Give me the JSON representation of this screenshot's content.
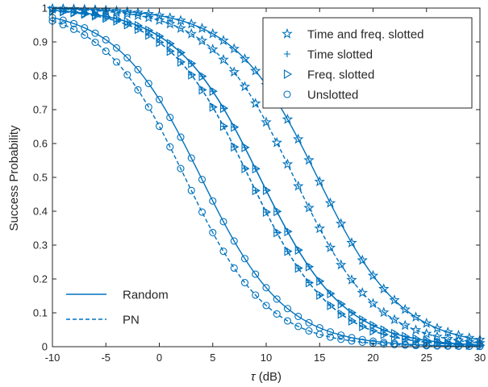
{
  "chart_data": {
    "type": "line",
    "xlabel_symbol": "τ",
    "xlabel_unit": " (dB)",
    "ylabel": "Success Probability",
    "xlim": [
      -10,
      30
    ],
    "ylim": [
      0,
      1
    ],
    "xticks": [
      -10,
      -5,
      0,
      5,
      10,
      15,
      20,
      25,
      30
    ],
    "yticks": [
      0,
      0.1,
      0.2,
      0.3,
      0.4,
      0.5,
      0.6,
      0.7,
      0.8,
      0.9,
      1
    ],
    "grid": false,
    "color": "#0072BD",
    "marker_legend": {
      "placement": "top-right",
      "entries": [
        {
          "label": "Time and freq. slotted",
          "marker": "star"
        },
        {
          "label": "Time slotted",
          "marker": "plus"
        },
        {
          "label": "Freq. slotted",
          "marker": "triangle-right"
        },
        {
          "label": "Unslotted",
          "marker": "circle"
        }
      ]
    },
    "line_legend": {
      "placement": "bottom-left",
      "entries": [
        {
          "label": "Random",
          "style": "solid"
        },
        {
          "label": "PN",
          "style": "dashed"
        }
      ]
    },
    "marker_x": [
      -10,
      -9,
      -8,
      -7,
      -6,
      -5,
      -4,
      -3,
      -2,
      -1,
      0,
      1,
      2,
      3,
      4,
      5,
      6,
      7,
      8,
      9,
      10,
      11,
      12,
      13,
      14,
      15,
      16,
      17,
      18,
      19,
      20,
      21,
      22,
      23,
      24,
      25,
      26,
      27,
      28,
      29,
      30
    ],
    "series": [
      {
        "scheme": "Time and freq. slotted",
        "sequence": "Random",
        "style": "solid",
        "marker": "star",
        "t50": 14.8,
        "k": 0.255
      },
      {
        "scheme": "Time and freq. slotted",
        "sequence": "PN",
        "style": "dashed",
        "marker": "star",
        "t50": 12.6,
        "k": 0.26
      },
      {
        "scheme": "Time slotted",
        "sequence": "Random",
        "style": "solid",
        "marker": "plus",
        "t50": 9.4,
        "k": 0.255
      },
      {
        "scheme": "Time slotted",
        "sequence": "PN",
        "style": "dashed",
        "marker": "plus",
        "t50": 8.4,
        "k": 0.26
      },
      {
        "scheme": "Freq. slotted",
        "sequence": "Random",
        "style": "solid",
        "marker": "triangle-right",
        "t50": 9.4,
        "k": 0.255
      },
      {
        "scheme": "Freq. slotted",
        "sequence": "PN",
        "style": "dashed",
        "marker": "triangle-right",
        "t50": 8.4,
        "k": 0.26
      },
      {
        "scheme": "Unslotted",
        "sequence": "Random",
        "style": "solid",
        "marker": "circle",
        "t50": 3.9,
        "k": 0.255
      },
      {
        "scheme": "Unslotted",
        "sequence": "PN",
        "style": "dashed",
        "marker": "circle",
        "t50": 2.4,
        "k": 0.26
      }
    ]
  }
}
